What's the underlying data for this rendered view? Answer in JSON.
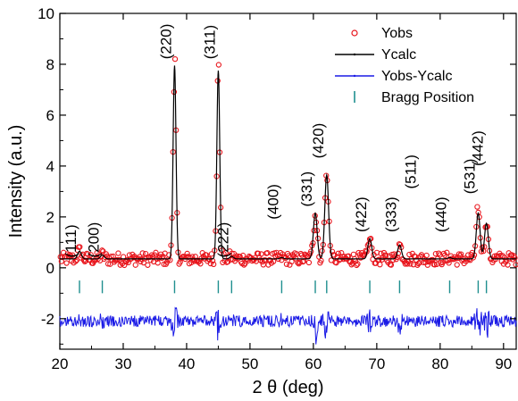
{
  "chart_data": {
    "type": "line",
    "xlabel": "2 θ (deg)",
    "ylabel": "Intensity (a.u.)",
    "xlim": [
      20,
      92
    ],
    "ylim": [
      -3.2,
      10
    ],
    "x_ticks": [
      20,
      30,
      40,
      50,
      60,
      70,
      80,
      90
    ],
    "y_ticks": [
      -2,
      0,
      2,
      4,
      6,
      8,
      10
    ],
    "grid": false,
    "legend_position": "top-right",
    "legend": [
      {
        "label": "Yobs",
        "marker": "open-circle",
        "color": "#e8141b"
      },
      {
        "label": "Ycalc",
        "marker": "line",
        "color": "#000000"
      },
      {
        "label": "Yobs-Ycalc",
        "marker": "line",
        "color": "#1a1ae6"
      },
      {
        "label": "Bragg Position",
        "marker": "vertical-bar",
        "color": "#1f8f8f"
      }
    ],
    "baseline": 0.35,
    "difference_offset": -2.1,
    "peaks": [
      {
        "label": "(111)",
        "x": 23.1,
        "height": 0.3,
        "label_y": 0.4
      },
      {
        "label": "(200)",
        "x": 26.7,
        "height": 0.15,
        "label_y": 0.4
      },
      {
        "label": "(220)",
        "x": 38.1,
        "height": 7.6,
        "label_y": 8.2
      },
      {
        "label": "(311)",
        "x": 45.0,
        "height": 7.4,
        "label_y": 8.2
      },
      {
        "label": "(222)",
        "x": 47.1,
        "height": 0.1,
        "label_y": 0.4
      },
      {
        "label": "(400)",
        "x": 55.0,
        "height": 0.05,
        "label_y": 1.9
      },
      {
        "label": "(331)",
        "x": 60.3,
        "height": 1.8,
        "label_y": 2.4
      },
      {
        "label": "(420)",
        "x": 62.1,
        "height": 3.3,
        "label_y": 4.3
      },
      {
        "label": "(422)",
        "x": 68.9,
        "height": 0.8,
        "label_y": 1.4
      },
      {
        "label": "(333)",
        "x": 73.6,
        "height": 0.55,
        "label_y": 1.4
      },
      {
        "label": "(511)",
        "x": 73.6,
        "height": 0.0,
        "label_y": 3.1
      },
      {
        "label": "(440)",
        "x": 81.5,
        "height": 0.05,
        "label_y": 1.4
      },
      {
        "label": "(531)",
        "x": 86.0,
        "height": 1.8,
        "label_y": 2.9
      },
      {
        "label": "(442)",
        "x": 87.3,
        "height": 1.4,
        "label_y": 4.0
      }
    ],
    "bragg_positions": [
      23.1,
      26.7,
      38.1,
      45.0,
      47.1,
      55.0,
      60.3,
      62.1,
      68.9,
      73.6,
      81.5,
      86.0,
      87.3
    ],
    "bragg_y": [
      -1.0,
      -0.5
    ]
  }
}
